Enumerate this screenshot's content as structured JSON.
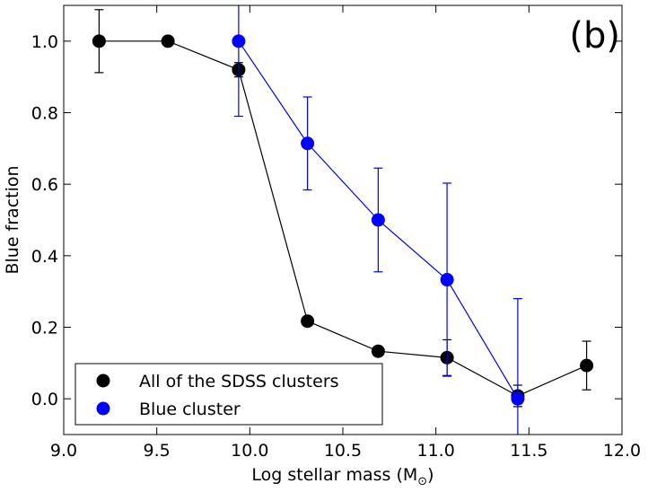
{
  "chart_data": {
    "type": "line",
    "title": "",
    "panel_label": "(b)",
    "xlabel": "Log stellar mass (M",
    "xlabel_sub": "⊙",
    "xlabel_close": ")",
    "ylabel": "Blue fraction",
    "xlim": [
      9.0,
      12.0
    ],
    "ylim": [
      -0.1,
      1.1
    ],
    "xticks": [
      9.0,
      9.5,
      10.0,
      10.5,
      11.0,
      11.5,
      12.0
    ],
    "xtick_labels": [
      "9.0",
      "9.5",
      "10.0",
      "10.5",
      "11.0",
      "11.5",
      "12.0"
    ],
    "yticks": [
      0.0,
      0.2,
      0.4,
      0.6,
      0.8,
      1.0
    ],
    "ytick_labels": [
      "0.0",
      "0.2",
      "0.4",
      "0.6",
      "0.8",
      "1.0"
    ],
    "legend_position": "lower-left",
    "series": [
      {
        "name": "All of the SDSS clusters",
        "color": "#000000",
        "x": [
          9.19,
          9.56,
          9.94,
          10.31,
          10.69,
          11.06,
          11.44,
          11.81
        ],
        "y": [
          1.0,
          1.0,
          0.92,
          0.217,
          0.133,
          0.115,
          0.008,
          0.093
        ],
        "err": [
          0.088,
          0.0,
          0.02,
          0.0,
          0.0,
          0.05,
          0.03,
          0.068
        ]
      },
      {
        "name": "Blue cluster",
        "color": "#0000ff",
        "x": [
          9.94,
          10.31,
          10.69,
          11.06,
          11.44
        ],
        "y": [
          1.0,
          0.714,
          0.5,
          0.333,
          0.0
        ],
        "err": [
          0.21,
          0.13,
          0.145,
          0.27,
          0.28
        ]
      }
    ]
  }
}
